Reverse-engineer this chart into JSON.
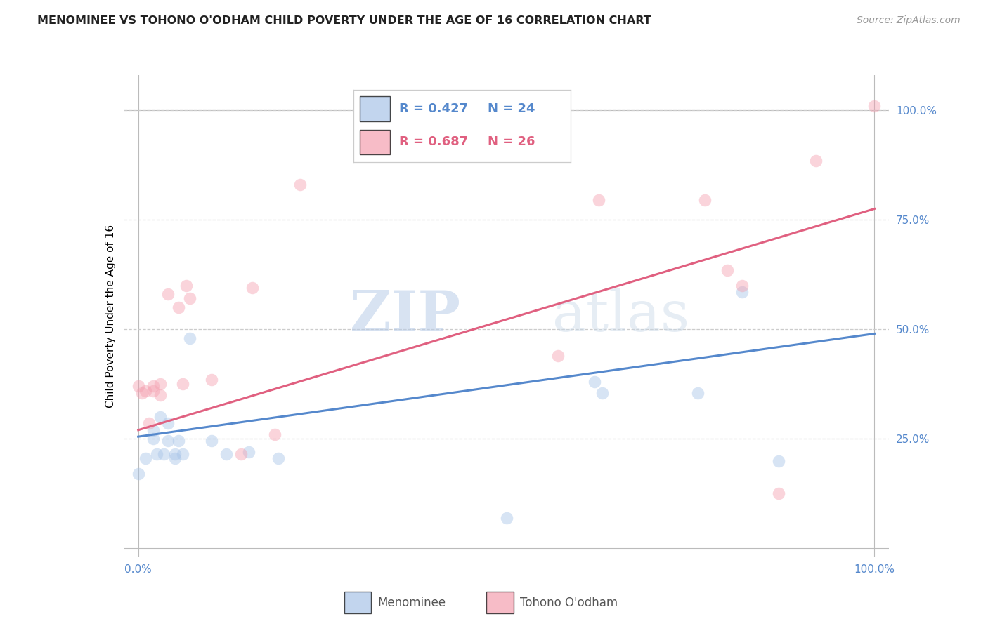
{
  "title": "MENOMINEE VS TOHONO O'ODHAM CHILD POVERTY UNDER THE AGE OF 16 CORRELATION CHART",
  "source": "Source: ZipAtlas.com",
  "ylabel": "Child Poverty Under the Age of 16",
  "watermark_zip": "ZIP",
  "watermark_atlas": "atlas",
  "xlim": [
    -0.02,
    1.02
  ],
  "ylim": [
    -0.02,
    1.08
  ],
  "xtick_positions": [
    0,
    0.25,
    0.5,
    0.75,
    1.0
  ],
  "xticklabels": [
    "0.0%",
    "",
    "",
    "",
    "100.0%"
  ],
  "ytick_positions": [
    0.25,
    0.5,
    0.75,
    1.0
  ],
  "yticklabels": [
    "25.0%",
    "50.0%",
    "75.0%",
    "100.0%"
  ],
  "blue_scatter_color": "#a8c4e8",
  "pink_scatter_color": "#f4a0b0",
  "blue_line_color": "#5588cc",
  "pink_line_color": "#e06080",
  "blue_line_x0": 0.0,
  "blue_line_x1": 1.0,
  "blue_line_y0": 0.255,
  "blue_line_y1": 0.49,
  "pink_line_x0": 0.0,
  "pink_line_x1": 1.0,
  "pink_line_y0": 0.27,
  "pink_line_y1": 0.775,
  "menominee_x": [
    0.0,
    0.01,
    0.02,
    0.02,
    0.025,
    0.03,
    0.035,
    0.04,
    0.04,
    0.05,
    0.05,
    0.055,
    0.06,
    0.07,
    0.1,
    0.12,
    0.15,
    0.19,
    0.5,
    0.62,
    0.63,
    0.76,
    0.82,
    0.87
  ],
  "menominee_y": [
    0.17,
    0.205,
    0.27,
    0.25,
    0.215,
    0.3,
    0.215,
    0.285,
    0.245,
    0.205,
    0.215,
    0.245,
    0.215,
    0.48,
    0.245,
    0.215,
    0.22,
    0.205,
    0.07,
    0.38,
    0.355,
    0.355,
    0.585,
    0.2
  ],
  "tohono_x": [
    0.0,
    0.005,
    0.01,
    0.015,
    0.02,
    0.02,
    0.03,
    0.03,
    0.04,
    0.055,
    0.06,
    0.065,
    0.07,
    0.1,
    0.14,
    0.155,
    0.185,
    0.22,
    0.57,
    0.625,
    0.77,
    0.8,
    0.82,
    0.87,
    0.92,
    1.0
  ],
  "tohono_y": [
    0.37,
    0.355,
    0.36,
    0.285,
    0.36,
    0.37,
    0.35,
    0.375,
    0.58,
    0.55,
    0.375,
    0.6,
    0.57,
    0.385,
    0.215,
    0.595,
    0.26,
    0.83,
    0.44,
    0.795,
    0.795,
    0.635,
    0.6,
    0.125,
    0.885,
    1.01
  ],
  "marker_size": 160,
  "alpha": 0.45,
  "grid_color": "#cccccc",
  "tick_color": "#5588cc",
  "background_color": "#ffffff",
  "title_fontsize": 11.5,
  "source_fontsize": 10,
  "ylabel_fontsize": 11,
  "tick_fontsize": 11,
  "legend_r_blue": "R = 0.427",
  "legend_n_blue": "N = 24",
  "legend_r_pink": "R = 0.687",
  "legend_n_pink": "N = 26"
}
